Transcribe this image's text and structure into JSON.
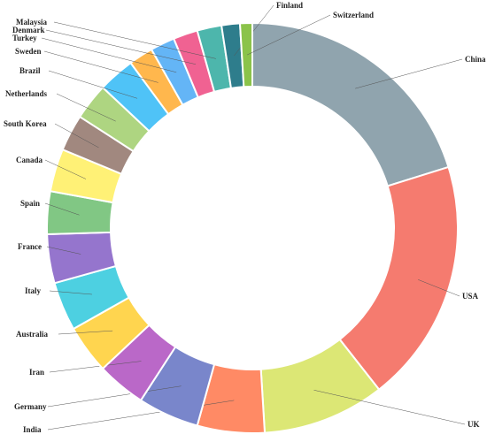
{
  "chart_data": {
    "type": "pie",
    "variant": "donut",
    "start": "top, clockwise",
    "labels": [
      "China",
      "USA",
      "UK",
      "India",
      "Germany",
      "Iran",
      "Australia",
      "Italy",
      "France",
      "Spain",
      "Canada",
      "South Korea",
      "Netherlands",
      "Brazil",
      "Sweden",
      "Turkey",
      "Denmark",
      "Malaysia",
      "Finland",
      "Switzerland"
    ],
    "values": [
      21.0,
      20.0,
      10.0,
      5.5,
      5.0,
      4.0,
      4.0,
      4.0,
      4.0,
      3.5,
      3.5,
      3.0,
      3.0,
      3.0,
      2.0,
      2.0,
      2.0,
      2.0,
      1.5,
      1.0
    ],
    "colors": [
      "#90a4ae",
      "#f57b6f",
      "#dce775",
      "#ff8a65",
      "#7986cb",
      "#ba68c8",
      "#ffd54f",
      "#4dd0e1",
      "#9575cd",
      "#81c784",
      "#fff176",
      "#a1887f",
      "#aed581",
      "#4fc3f7",
      "#ffb74d",
      "#64b5f6",
      "#f06292",
      "#4db6ac",
      "#2e7d8c",
      "#8bc34a"
    ]
  }
}
